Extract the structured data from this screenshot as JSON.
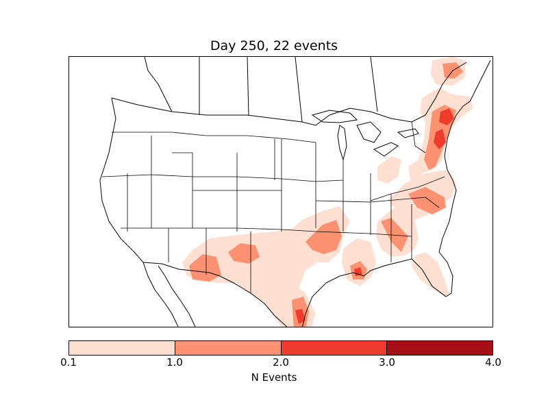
{
  "title": "Day 250, 22 events",
  "colorbar": {
    "label": "N Events",
    "ticks": [
      "0.1",
      "1.0",
      "2.0",
      "3.0",
      "4.0"
    ],
    "colors": [
      "#fee0d2",
      "#fc9272",
      "#ef3b2c",
      "#a50f15"
    ]
  }
}
